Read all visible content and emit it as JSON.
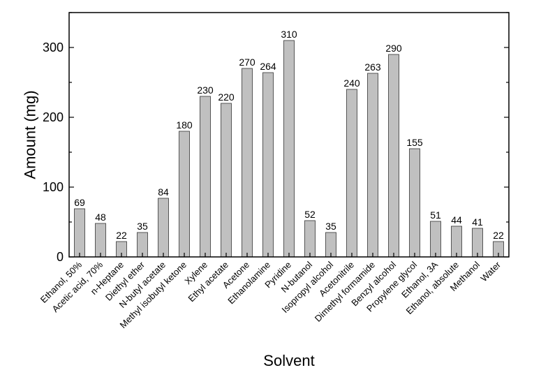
{
  "chart_data": {
    "type": "bar",
    "title": "",
    "xlabel": "Solvent",
    "ylabel": "Amount (mg)",
    "ylim": [
      0,
      350
    ],
    "yticks": [
      0,
      100,
      200,
      300
    ],
    "grid": false,
    "bar_color": "#c0c0c0",
    "categories": [
      "Ethanol, 50%",
      "Acetic acid, 70%",
      "n-Heptane",
      "Diethyl ether",
      "N-butyl acetate",
      "Methyl isobutyl ketone",
      "Xylene",
      "Ethyl acetate",
      "Acetone",
      "Ethanolamine",
      "Pyridine",
      "N-butanol",
      "Isopropyl alcohol",
      "Acetonitrile",
      "Dimethyl formamide",
      "Benzyl alcohol",
      "Propylene glycol",
      "Ethanol, 3A",
      "Ethanol, absolute",
      "Methanol",
      "Water"
    ],
    "values": [
      69,
      48,
      22,
      35,
      84,
      180,
      230,
      220,
      270,
      264,
      310,
      52,
      35,
      240,
      263,
      290,
      155,
      51,
      44,
      41,
      22
    ]
  }
}
